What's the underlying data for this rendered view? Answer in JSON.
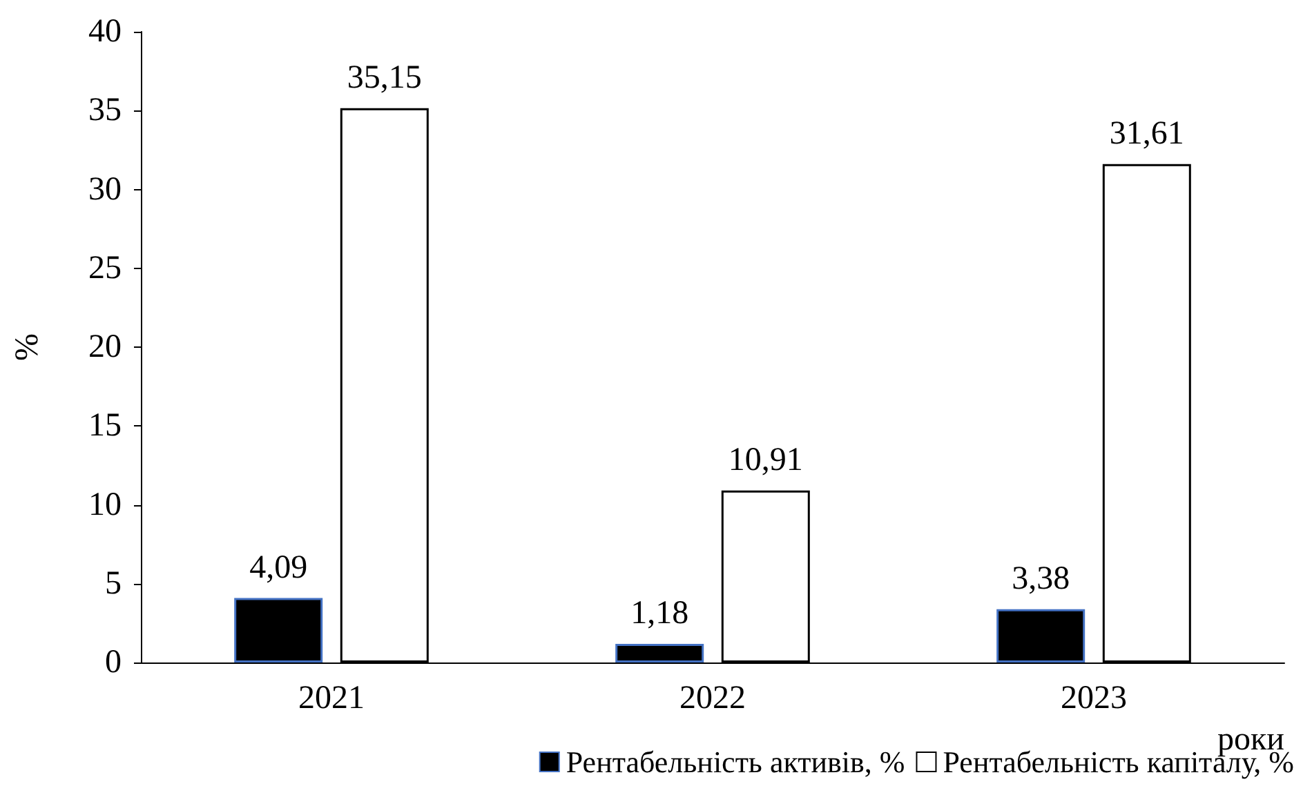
{
  "chart_data": {
    "type": "bar",
    "xlabel": "роки",
    "ylabel": "%",
    "categories": [
      "2021",
      "2022",
      "2023"
    ],
    "series": [
      {
        "name": "Рентабельність активів, %",
        "color": "#000000",
        "values": [
          4.09,
          1.18,
          3.38
        ],
        "value_labels": [
          "4,09",
          "1,18",
          "3,38"
        ]
      },
      {
        "name": "Рентабельність капіталу, %",
        "color": "#ffffff",
        "values": [
          35.15,
          10.91,
          31.61
        ],
        "value_labels": [
          "35,15",
          "10,91",
          "31,61"
        ]
      }
    ],
    "ylim": [
      0,
      40
    ],
    "yticks": [
      0,
      5,
      10,
      15,
      20,
      25,
      30,
      35,
      40
    ],
    "grid": false,
    "legend": "bottom right"
  }
}
